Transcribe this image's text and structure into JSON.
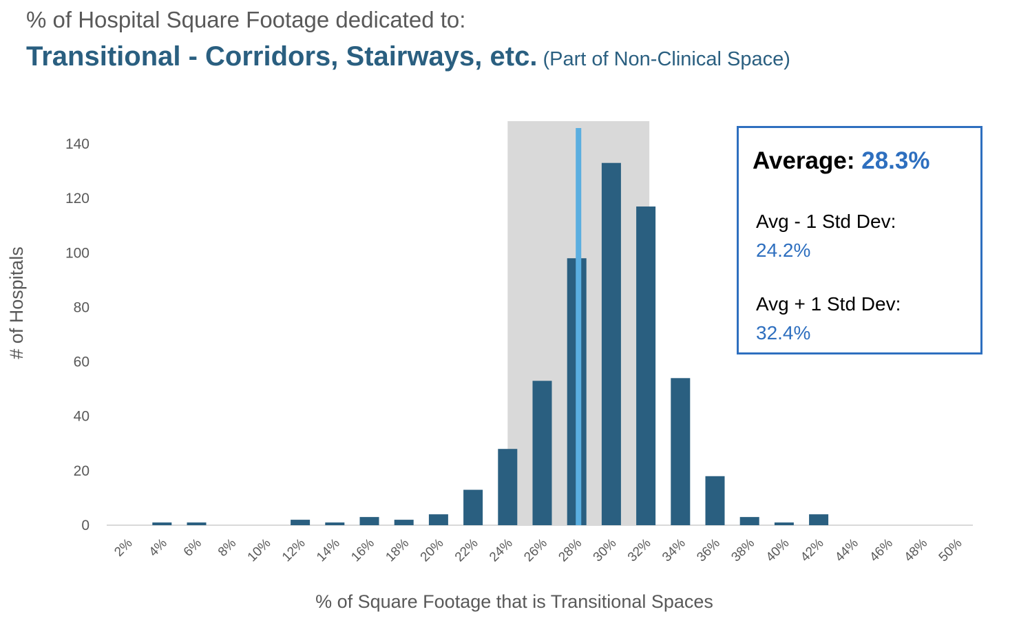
{
  "header": {
    "title_line1": "% of Hospital Square Footage dedicated to:",
    "title_line2": "Transitional - Corridors, Stairways, etc.",
    "title_note": "(Part of Non-Clinical Space)"
  },
  "chart_data": {
    "type": "bar",
    "xlabel": "% of Square Footage that is Transitional Spaces",
    "ylabel": "# of Hospitals",
    "ylim": [
      0,
      140
    ],
    "yticks": [
      0,
      20,
      40,
      60,
      80,
      100,
      120,
      140
    ],
    "categories": [
      "2%",
      "4%",
      "6%",
      "8%",
      "10%",
      "12%",
      "14%",
      "16%",
      "18%",
      "20%",
      "22%",
      "24%",
      "26%",
      "28%",
      "30%",
      "32%",
      "34%",
      "36%",
      "38%",
      "40%",
      "42%",
      "44%",
      "46%",
      "48%",
      "50%"
    ],
    "values": [
      0,
      1,
      1,
      0,
      0,
      2,
      1,
      3,
      2,
      4,
      13,
      28,
      53,
      98,
      133,
      117,
      54,
      18,
      3,
      1,
      4,
      0,
      0,
      0,
      0
    ],
    "bar_color": "#2a5f80",
    "average_line": {
      "value_pct": 28.3,
      "color": "#5aaee0"
    },
    "std_band": {
      "low_pct": 24.2,
      "high_pct": 32.4,
      "color": "#d9d9d9"
    },
    "grid": false
  },
  "stats_box": {
    "average_label": "Average:",
    "average_value": "28.3%",
    "minus_label": "Avg - 1 Std Dev:",
    "minus_value": "24.2%",
    "plus_label": "Avg + 1 Std Dev:",
    "plus_value": "32.4%"
  }
}
